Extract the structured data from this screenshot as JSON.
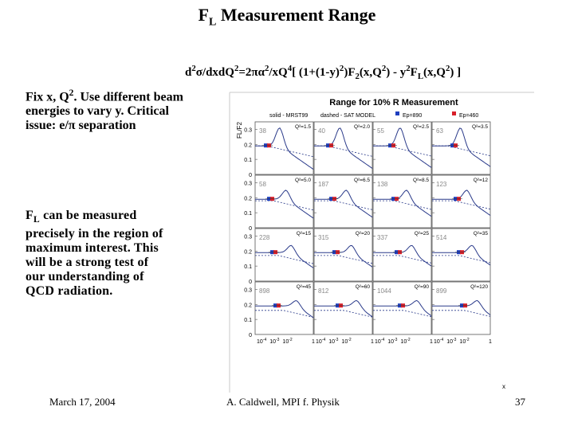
{
  "slide": {
    "title_main": "F",
    "title_sub": "L",
    "title_rest": " Measurement Range",
    "formula": [
      {
        "t": "d"
      },
      {
        "t": "2",
        "s": "sup"
      },
      {
        "t": "σ/dxdQ"
      },
      {
        "t": "2",
        "s": "sup"
      },
      {
        "t": "=2πα"
      },
      {
        "t": "2",
        "s": "sup"
      },
      {
        "t": "/xQ"
      },
      {
        "t": "4",
        "s": "sup"
      },
      {
        "t": "[ (1+(1-y)"
      },
      {
        "t": "2",
        "s": "sup"
      },
      {
        "t": ")F"
      },
      {
        "t": "2",
        "s": "sub"
      },
      {
        "t": "(x,Q"
      },
      {
        "t": "2",
        "s": "sup"
      },
      {
        "t": ") - y"
      },
      {
        "t": "2",
        "s": "sup"
      },
      {
        "t": "F"
      },
      {
        "t": "L",
        "s": "sub"
      },
      {
        "t": "(x,Q"
      },
      {
        "t": "2",
        "s": "sup"
      },
      {
        "t": ") ]"
      }
    ],
    "bullet1": [
      {
        "t": "Fix x, Q"
      },
      {
        "t": "2",
        "s": "sup"
      },
      {
        "t": ".  Use different beam energies to vary y.  Critical issue: e/π separation"
      }
    ],
    "bullet2": [
      {
        "t": "F"
      },
      {
        "t": "L",
        "s": "sub"
      },
      {
        "t": " can be measured precisely in the region of maximum interest.  This will be a strong test of our understanding of QCD radiation."
      }
    ],
    "footer": {
      "date": "March 17, 2004",
      "author": "A. Caldwell, MPI f. Physik",
      "page": "37"
    }
  },
  "chart_data": {
    "type": "line",
    "title": "Range for 10% R Measurement",
    "legend_solid": "solid - MRST99",
    "legend_dashed": "dashed - SAT MODEL",
    "legend_ep1": "Ep=890",
    "legend_ep2": "Ep=460",
    "color_ep1": "#1f3fbf",
    "color_ep2": "#d8202a",
    "ylabel": "FL/F2",
    "xlabel": "x",
    "y_ticks": [
      "0.3",
      "0.2",
      "0.1",
      "0"
    ],
    "x_ticks": [
      "10",
      "10",
      "10",
      "1"
    ],
    "x_tick_exp": [
      "-4",
      "-3",
      "-2",
      ""
    ],
    "xlim_log10": [
      -4.5,
      0
    ],
    "ylim": [
      0,
      0.35
    ],
    "panels": [
      {
        "q2": "Q²=1.5",
        "num": "38",
        "peak_log10x": -2.6
      },
      {
        "q2": "Q²=2.0",
        "num": "40",
        "peak_log10x": -2.5
      },
      {
        "q2": "Q²=2.5",
        "num": "55",
        "peak_log10x": -2.4
      },
      {
        "q2": "Q²=3.5",
        "num": "63",
        "peak_log10x": -2.3
      },
      {
        "q2": "Q²=5.0",
        "num": "58",
        "peak_log10x": -2.1
      },
      {
        "q2": "Q²=6.5",
        "num": "187",
        "peak_log10x": -2.0
      },
      {
        "q2": "Q²=8.5",
        "num": "138",
        "peak_log10x": -1.9
      },
      {
        "q2": "Q²=12",
        "num": "123",
        "peak_log10x": -1.8
      },
      {
        "q2": "Q²=15",
        "num": "228",
        "peak_log10x": -1.7
      },
      {
        "q2": "Q²=20",
        "num": "315",
        "peak_log10x": -1.6
      },
      {
        "q2": "Q²=25",
        "num": "337",
        "peak_log10x": -1.5
      },
      {
        "q2": "Q²=35",
        "num": "514",
        "peak_log10x": -1.4
      },
      {
        "q2": "Q²=45",
        "num": "898",
        "peak_log10x": -1.3
      },
      {
        "q2": "Q²=60",
        "num": "812",
        "peak_log10x": -1.2
      },
      {
        "q2": "Q²=90",
        "num": "1044",
        "peak_log10x": -1.1
      },
      {
        "q2": "Q²=120",
        "num": "899",
        "peak_log10x": -1.0
      }
    ]
  }
}
